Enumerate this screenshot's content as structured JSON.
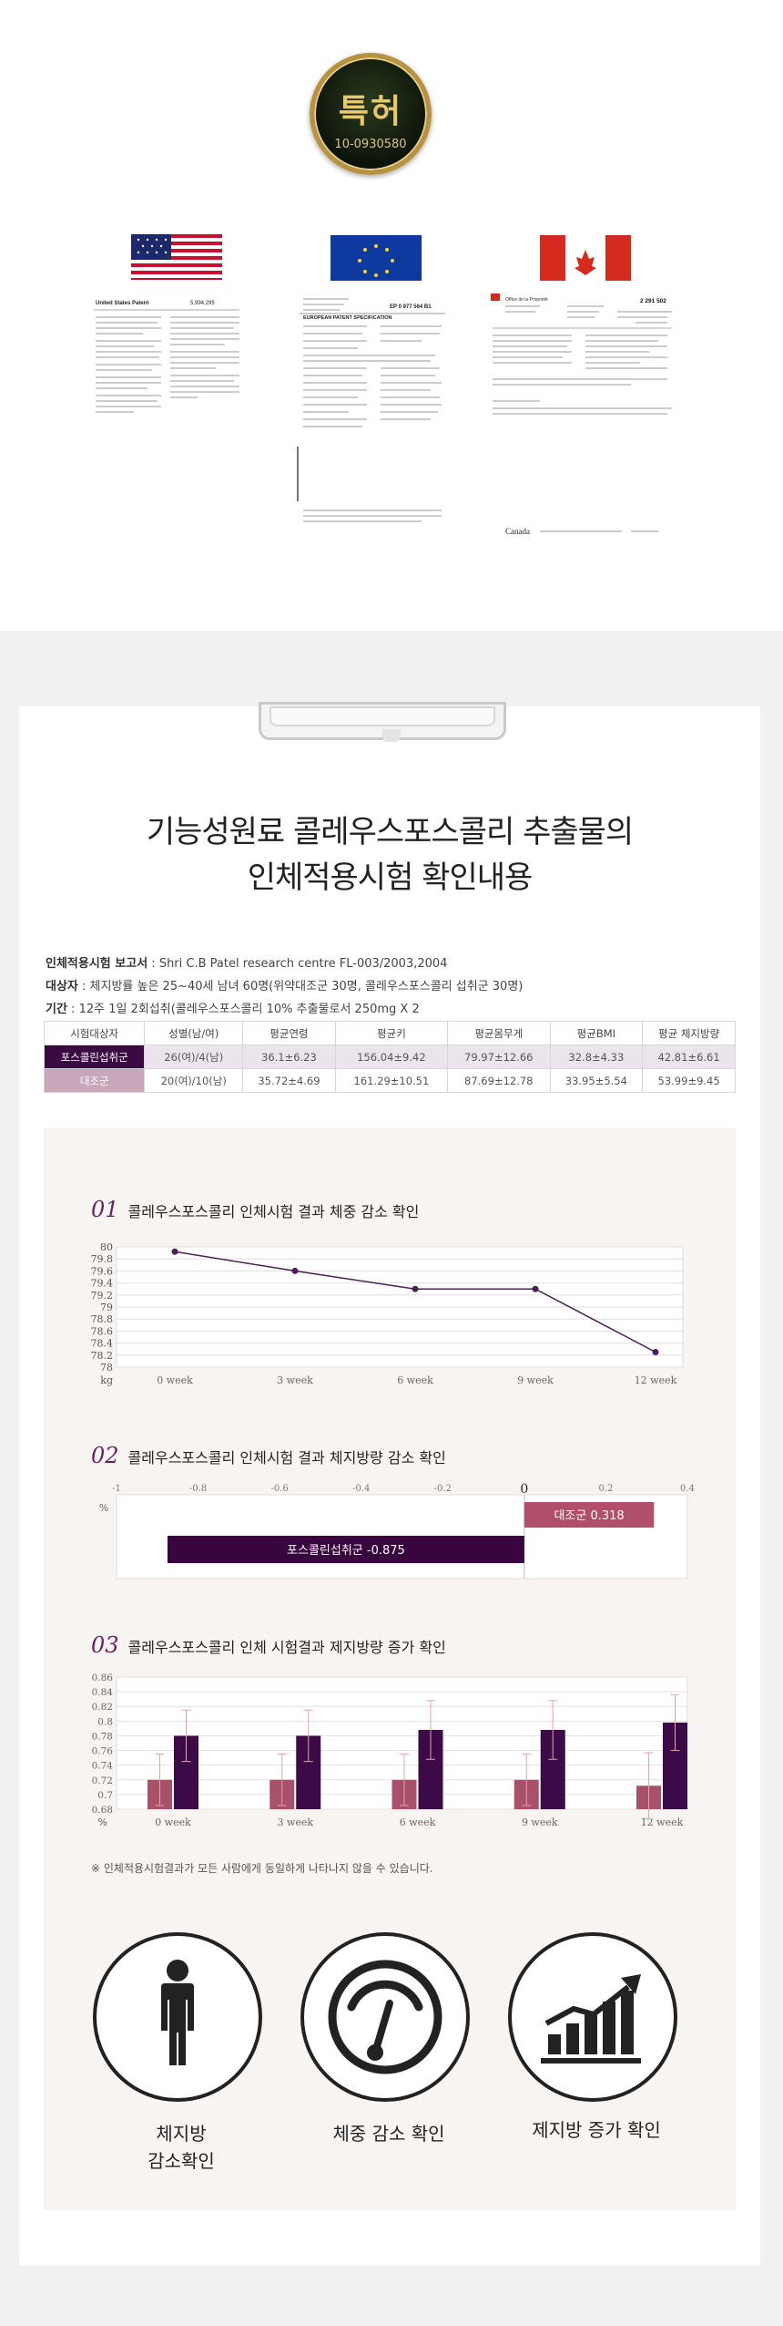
{
  "patent_badge": {
    "title": "특허",
    "number": "10-0930580"
  },
  "patent_documents": [
    {
      "flag": "usa-flag-icon",
      "header_left": "United States Patent",
      "header_right": "5,994,295"
    },
    {
      "flag": "eu-flag-icon",
      "header_left": "EUROPEAN PATENT SPECIFICATION",
      "header_right": "EP 0 977 564 B1"
    },
    {
      "flag": "canada-flag-icon",
      "header_left": "Office de la Propriété",
      "header_right": "2 291 502",
      "footer": "Canada"
    }
  ],
  "study": {
    "title_line1": "기능성원료 콜레우스포스콜리 추출물의",
    "title_line2": "인체적용시험 확인내용",
    "report_label": "인체적용시험 보고서",
    "report_value": " : Shri C.B Patel research centre FL-003/2003,2004",
    "subjects_label": "대상자",
    "subjects_value": " : 체지방률 높은 25~40세 남녀 60명(위약대조군 30명, 콜레우스포스콜리 섭취군 30명)",
    "period_label": "기간",
    "period_value": " : 12주 1일 2회섭취(콜레우스포스콜리 10% 추출물로서 250mg X 2"
  },
  "table": {
    "headers": [
      "시험대상자",
      "성별(남/여)",
      "평균연령",
      "평균키",
      "평균몸무게",
      "평균BMI",
      "평균 체지방량"
    ],
    "rows": [
      [
        "포스콜린섭취군",
        "26(여)/4(남)",
        "36.1±6.23",
        "156.04±9.42",
        "79.97±12.66",
        "32.8±4.33",
        "42.81±6.61"
      ],
      [
        "대조군",
        "20(여)/10(남)",
        "35.72±4.69",
        "161.29±10.51",
        "87.69±12.78",
        "33.95±5.54",
        "53.99±9.45"
      ]
    ]
  },
  "chart1": {
    "num": "01",
    "title": "콜레우스포스콜리 인체시험 결과 체중 감소 확인"
  },
  "chart2": {
    "num": "02",
    "title": "콜레우스포스콜리 인체시험 결과 체지방량 감소 확인"
  },
  "chart3": {
    "num": "03",
    "title": "콜레우스포스콜리 인체 시험결과 제지방량 증가 확인"
  },
  "chart_data": [
    {
      "type": "line",
      "title": "콜레우스포스콜리 인체시험 결과 체중 감소 확인",
      "categories": [
        "0 week",
        "3 week",
        "6 week",
        "9 week",
        "12 week"
      ],
      "values": [
        79.92,
        79.6,
        79.3,
        79.3,
        78.25
      ],
      "ylabel": "kg",
      "ylim": [
        78,
        80
      ],
      "yticks": [
        "80",
        "79.8",
        "79.6",
        "79.4",
        "79.2",
        "79",
        "78.8",
        "78.6",
        "78.4",
        "78.2",
        "78"
      ],
      "colors": {
        "line": "#4b1f57"
      },
      "grid": true
    },
    {
      "type": "bar",
      "orientation": "horizontal",
      "title": "콜레우스포스콜리 인체시험 결과 체지방량 감소 확인",
      "xlabel": "%",
      "xlim": [
        -1,
        0.4
      ],
      "xticks": [
        "-1",
        "-0.8",
        "-0.6",
        "-0.4",
        "-0.2",
        "0",
        "0.2",
        "0.4"
      ],
      "series": [
        {
          "name": "포스콜린섭취군",
          "value": -0.875,
          "color": "#38053f"
        },
        {
          "name": "대조군",
          "value": 0.318,
          "color": "#b04e6b"
        }
      ]
    },
    {
      "type": "bar",
      "title": "콜레우스포스콜리 인체 시험결과 제지방량 증가 확인",
      "categories": [
        "0 week",
        "3 week",
        "6 week",
        "9 week",
        "12 week"
      ],
      "ylabel": "%",
      "ylim": [
        0.68,
        0.86
      ],
      "yticks": [
        "0.86",
        "0.84",
        "0.82",
        "0.8",
        "0.78",
        "0.76",
        "0.74",
        "0.72",
        "0.7",
        "0.68"
      ],
      "series": [
        {
          "color": "#a9506b",
          "values": [
            0.72,
            0.72,
            0.72,
            0.72,
            0.712
          ],
          "err": [
            0.035,
            0.035,
            0.035,
            0.035,
            0.045
          ]
        },
        {
          "color": "#3c0a46",
          "values": [
            0.78,
            0.78,
            0.788,
            0.788,
            0.798
          ],
          "err": [
            0.035,
            0.035,
            0.04,
            0.04,
            0.038
          ]
        }
      ]
    }
  ],
  "note": "※ 인체적용시험결과가 모든 사람에게 동일하게 나타나지 않을 수 있습니다.",
  "features": [
    {
      "icon": "person-icon",
      "label_line1": "체지방",
      "label_line2": "감소확인"
    },
    {
      "icon": "gauge-icon",
      "label_line1": "체중 감소 확인",
      "label_line2": ""
    },
    {
      "icon": "growth-chart-icon",
      "label_line1": "제지방 증가 확인",
      "label_line2": ""
    }
  ]
}
